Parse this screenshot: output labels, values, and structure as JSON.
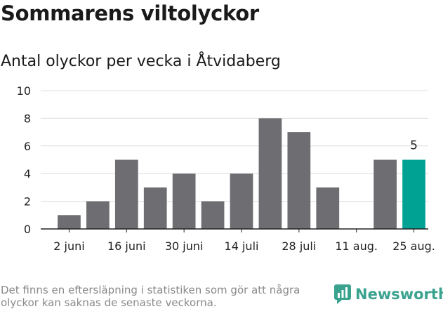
{
  "header": {
    "title": "Sommarens viltolyckor",
    "subtitle": "Antal olyckor per vecka i Åtvidaberg"
  },
  "footer": {
    "note": "Det finns en eftersläpning i statistiken som gör att några olyckor kan saknas de senaste veckorna.",
    "brand": "Newsworthy"
  },
  "colors": {
    "bar": "#6e6d72",
    "highlight": "#00a294",
    "grid": "#dcdcdc",
    "axis": "#222222",
    "brand": "#3aa38f"
  },
  "chart_data": {
    "type": "bar",
    "values": [
      1,
      2,
      5,
      3,
      4,
      2,
      4,
      8,
      7,
      3,
      0,
      5,
      5
    ],
    "highlight_index": 12,
    "highlight_label": "5",
    "x_tick_labels": [
      "2 juni",
      "16 juni",
      "30 juni",
      "14 juli",
      "28 juli",
      "11 aug.",
      "25 aug."
    ],
    "x_tick_every": 2,
    "y_ticks": [
      "0",
      "2",
      "4",
      "6",
      "8",
      "10"
    ],
    "ylim": [
      0,
      10
    ],
    "grid": true,
    "legend": "none"
  }
}
